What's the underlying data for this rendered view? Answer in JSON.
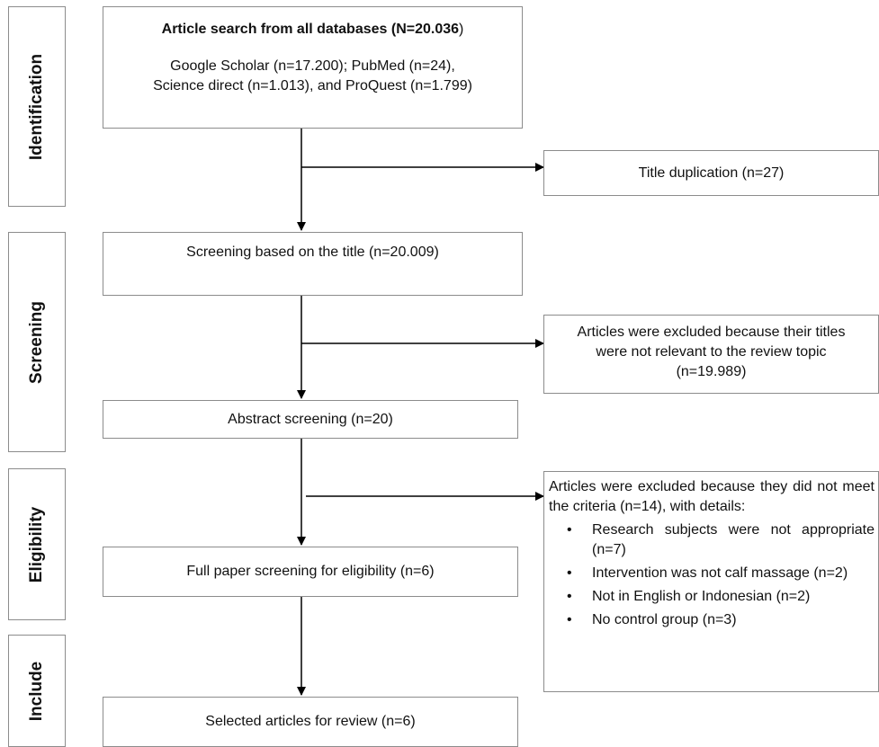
{
  "stages": {
    "identification": "Identification",
    "screening": "Screening",
    "eligibility": "Eligibility",
    "include": "Include"
  },
  "search": {
    "title_bold": "Article search from all databases (N=20.036",
    "title_tail": ")",
    "line1": "Google Scholar (n=17.200); PubMed (n=24),",
    "line2": "Science direct (n=1.013), and ProQuest (n=1.799)"
  },
  "duplication": "Title duplication (n=27)",
  "title_screening": "Screening based on the title (n=20.009)",
  "title_exclusion": {
    "line1": "Articles were excluded because their titles",
    "line2": "were not relevant to the review topic",
    "line3": "(n=19.989)"
  },
  "abstract_screening": "Abstract screening (n=20)",
  "abstract_exclusion": {
    "intro": "Articles were excluded because they did not meet the criteria (n=14), with details:",
    "bullet": "•",
    "items": [
      "Research subjects were not appropriate (n=7)",
      "Intervention was not calf massage (n=2)",
      "Not in English or Indonesian (n=2)",
      "No control group (n=3)"
    ]
  },
  "fullpaper_screening": "Full paper screening for eligibility (n=6)",
  "selected": "Selected articles for review (n=6)"
}
